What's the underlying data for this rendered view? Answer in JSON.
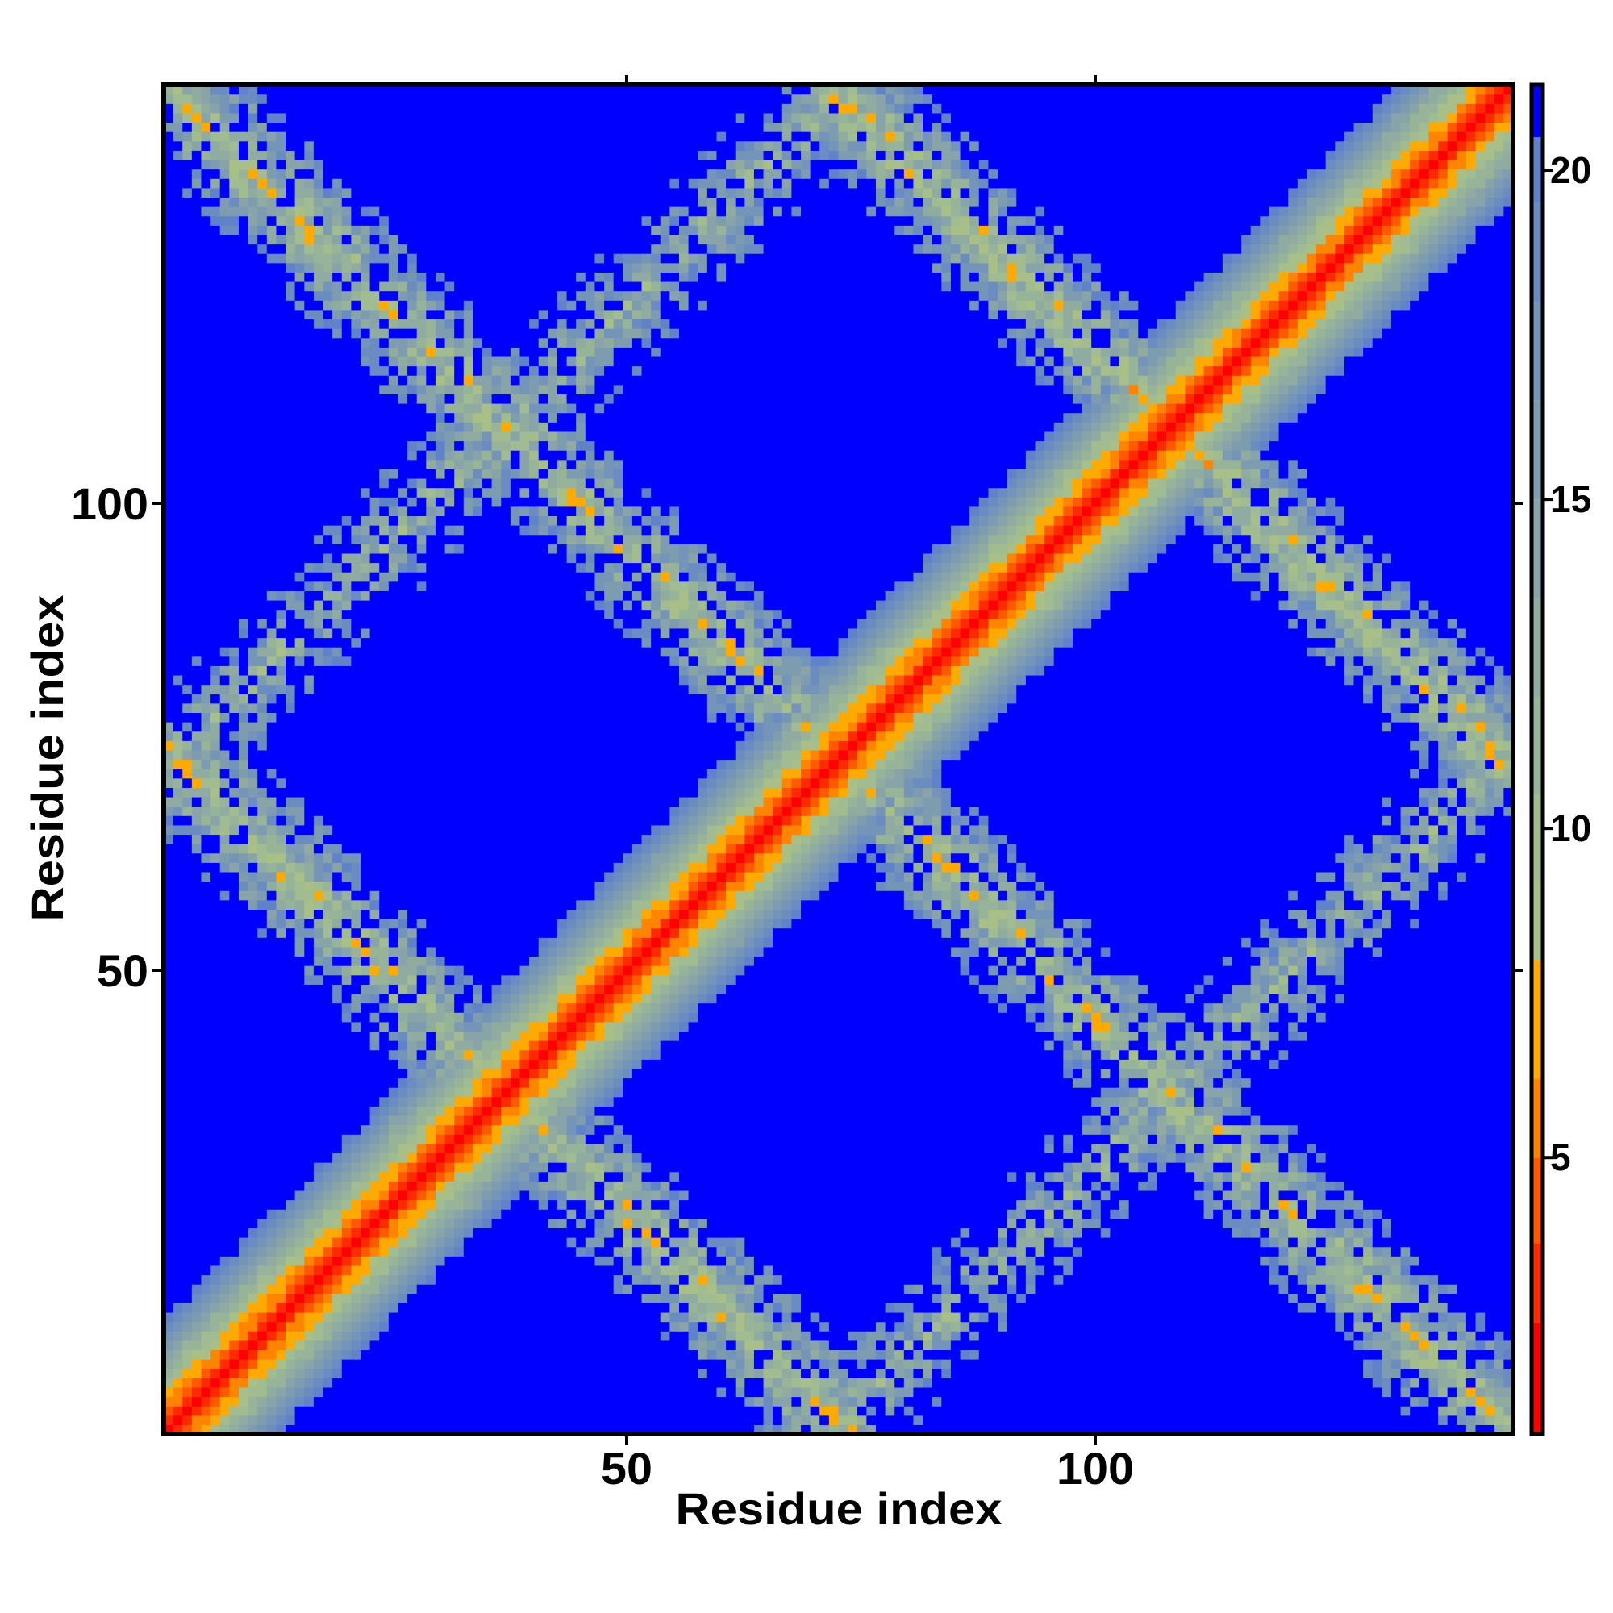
{
  "chart_data": {
    "type": "heatmap",
    "title": "",
    "xlabel": "Residue index",
    "ylabel": "Residue index",
    "n_residues": 144,
    "xlim": [
      0.5,
      144.5
    ],
    "ylim": [
      0.5,
      144.5
    ],
    "x_ticks": [
      "50",
      "100"
    ],
    "x_tick_values": [
      50,
      100
    ],
    "y_ticks": [
      "50",
      "100"
    ],
    "y_tick_values": [
      50,
      100
    ],
    "colorbar": {
      "range": [
        0.8,
        21.3
      ],
      "ticks": [
        "5",
        "10",
        "15",
        "20"
      ],
      "tick_values": [
        5,
        10,
        15,
        20
      ],
      "placement": "right"
    },
    "structure": {
      "main_diagonal": {
        "slope_per_residue": 1.55,
        "min": 1.0
      },
      "anti_diagonal_bands": [
        {
          "i_plus_j": 145,
          "i_range": [
            1,
            144
          ]
        },
        {
          "i_plus_j": 74,
          "i_range": [
            1,
            74
          ]
        },
        {
          "i_plus_j": 216,
          "i_range": [
            70,
            144
          ]
        }
      ],
      "parallel_bands": [
        {
          "abs_i_minus_j": 71
        }
      ],
      "saturated_value": 21.3
    },
    "color_scale": [
      {
        "max": 2.5,
        "color": "#ff0000"
      },
      {
        "max": 3.7,
        "color": "#ff2a00"
      },
      {
        "max": 5.0,
        "color": "#ff5a00"
      },
      {
        "max": 6.2,
        "color": "#ff8400"
      },
      {
        "max": 8.0,
        "color": "#ffaa00"
      },
      {
        "max": 9.2,
        "color": "#a8c088"
      },
      {
        "max": 10.5,
        "color": "#a0bc90"
      },
      {
        "max": 12.0,
        "color": "#98b498"
      },
      {
        "max": 13.5,
        "color": "#90aca0"
      },
      {
        "max": 15.0,
        "color": "#88a4a8"
      },
      {
        "max": 16.5,
        "color": "#7e9cb0"
      },
      {
        "max": 18.0,
        "color": "#7494b8"
      },
      {
        "max": 19.5,
        "color": "#6a8cc0"
      },
      {
        "max": 20.5,
        "color": "#6082c8"
      },
      {
        "max": 99,
        "color": "#0000ff"
      }
    ]
  }
}
